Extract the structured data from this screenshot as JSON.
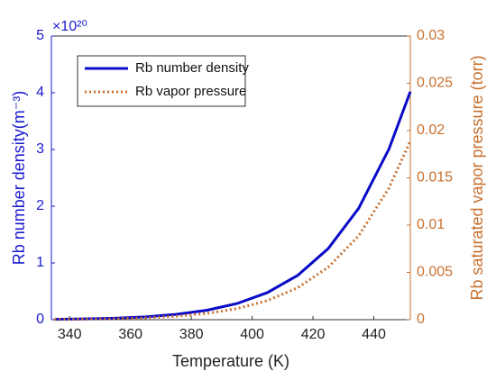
{
  "chart_data": {
    "type": "line",
    "xlabel": "Temperature (K)",
    "ylabel": "Rb number density(m⁻³)",
    "y_multiplier": "×10²⁰",
    "y2label": "Rb saturated vapor pressure (torr)",
    "x": [
      335,
      345,
      355,
      365,
      375,
      385,
      395,
      405,
      415,
      425,
      435,
      445,
      452
    ],
    "series": [
      {
        "name": "Rb number density",
        "color": "#0a0ac8",
        "style": "solid",
        "values": [
          0.0066,
          0.0135,
          0.0267,
          0.0505,
          0.0926,
          0.165,
          0.284,
          0.477,
          0.782,
          1.253,
          1.961,
          3.011,
          4.02
        ]
      },
      {
        "name": "Rb vapor pressure",
        "color": "#c8702e",
        "style": "dotted",
        "axis": "y2",
        "values": [
          2.3e-05,
          4.85e-05,
          9.84e-05,
          0.000192,
          0.000361,
          0.000659,
          0.001168,
          0.00201,
          0.00338,
          0.00554,
          0.00887,
          0.01394,
          0.0189
        ]
      }
    ],
    "xlim": [
      334,
      452
    ],
    "xticks": [
      340,
      360,
      380,
      400,
      420,
      440
    ],
    "ylim": [
      0,
      5
    ],
    "yticks": [
      0,
      1,
      2,
      3,
      4,
      5
    ],
    "y2lim": [
      0,
      0.03
    ],
    "y2ticks": [
      0,
      0.005,
      0.01,
      0.015,
      0.02,
      0.025,
      0.03
    ],
    "y_color": "#1a1ad0",
    "y2_color": "#c8702e",
    "legend": "upper left"
  }
}
